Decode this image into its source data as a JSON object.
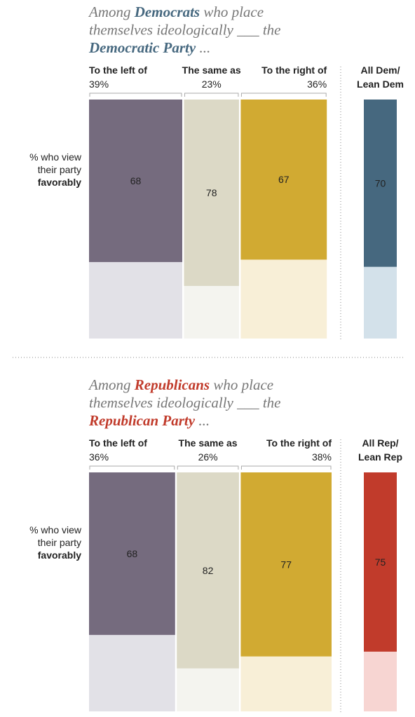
{
  "chart_data": [
    {
      "type": "mekko",
      "title": [
        [
          {
            "text": "Among "
          },
          {
            "text": "Democrats",
            "bold": true
          },
          {
            "text": " who place"
          }
        ],
        [
          {
            "text": "themselves ideologically ___ the"
          }
        ],
        [
          {
            "text": "Democratic Party",
            "bold": true
          },
          {
            "text": " ..."
          }
        ]
      ],
      "title_color": "#46687f",
      "y_label": [
        "% who view",
        "their party",
        "favorably"
      ],
      "categories": [
        "To the left of",
        "The same as",
        "To the right of"
      ],
      "widths": [
        39,
        23,
        36
      ],
      "width_labels": [
        "39%",
        "23%",
        "36%"
      ],
      "values": [
        68,
        78,
        67
      ],
      "colors": [
        "#756b7e",
        "#dcd9c6",
        "#d1aa32"
      ],
      "light_colors": [
        "#e2e1e7",
        "#f4f4ef",
        "#f8efd7"
      ],
      "label_colors": [
        "#ffffff",
        "#222222",
        "#222222"
      ],
      "total": {
        "label": [
          "All Dem/",
          "Lean Dem"
        ],
        "value": 70,
        "color": "#46687f",
        "light_color": "#d3e1ea"
      },
      "ylim": [
        0,
        100
      ]
    },
    {
      "type": "mekko",
      "title": [
        [
          {
            "text": "Among "
          },
          {
            "text": "Republicans",
            "bold": true
          },
          {
            "text": " who place"
          }
        ],
        [
          {
            "text": "themselves ideologically ___ the"
          }
        ],
        [
          {
            "text": "Republican Party",
            "bold": true
          },
          {
            "text": " ..."
          }
        ]
      ],
      "title_color": "#c13b2b",
      "y_label": [
        "% who view",
        "their party",
        "favorably"
      ],
      "categories": [
        "To the left of",
        "The same as",
        "To the right of"
      ],
      "widths": [
        36,
        26,
        38
      ],
      "width_labels": [
        "36%",
        "26%",
        "38%"
      ],
      "values": [
        68,
        82,
        77
      ],
      "colors": [
        "#756b7e",
        "#dcd9c6",
        "#d1aa32"
      ],
      "light_colors": [
        "#e2e1e7",
        "#f4f4ef",
        "#f8efd7"
      ],
      "label_colors": [
        "#ffffff",
        "#222222",
        "#222222"
      ],
      "total": {
        "label": [
          "All Rep/",
          "Lean Rep"
        ],
        "value": 75,
        "color": "#c13b2b",
        "light_color": "#f7d5d2"
      },
      "ylim": [
        0,
        100
      ]
    }
  ]
}
